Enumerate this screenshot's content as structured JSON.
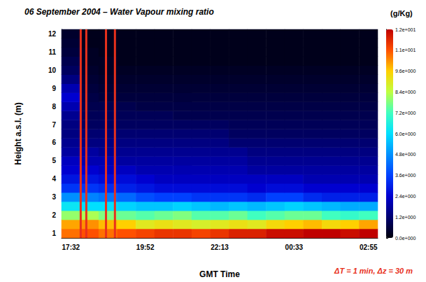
{
  "chart_data": {
    "type": "heatmap",
    "title": "06 September 2004 – Water Vapour mixing ratio",
    "x_label": "GMT Time",
    "y_label": "Height a.s.l. (m)",
    "categories": [
      "17:32",
      null,
      null,
      null,
      "19:52",
      null,
      null,
      null,
      "22:13",
      null,
      null,
      null,
      "00:33",
      null,
      null,
      null,
      "02:55"
    ],
    "y_categories": [
      "1",
      null,
      "2",
      null,
      "3",
      null,
      "4",
      null,
      "5",
      null,
      "6",
      null,
      "7",
      null,
      "8",
      null,
      "9",
      null,
      "10",
      null,
      "11",
      null,
      "12"
    ],
    "values": [
      [
        10.5,
        10.8,
        10.5,
        10.8,
        11.0,
        11.2,
        11.2,
        11.0,
        11.2,
        11.5,
        11.5,
        11.8,
        11.8,
        12.0,
        12.0,
        11.8,
        12.0
      ],
      [
        10.0,
        10.2,
        9.8,
        9.6,
        9.0,
        9.2,
        9.0,
        8.8,
        9.0,
        9.2,
        9.0,
        9.4,
        9.6,
        9.8,
        9.4,
        9.6,
        10.0
      ],
      [
        8.0,
        8.2,
        7.8,
        7.6,
        7.4,
        7.6,
        7.8,
        7.4,
        7.4,
        7.6,
        7.2,
        7.4,
        7.6,
        7.6,
        7.2,
        7.0,
        7.2
      ],
      [
        6.2,
        6.0,
        6.0,
        5.8,
        5.6,
        5.6,
        5.8,
        5.6,
        5.4,
        5.6,
        5.4,
        5.6,
        5.8,
        5.6,
        5.4,
        5.2,
        5.2
      ],
      [
        4.8,
        4.6,
        4.4,
        4.2,
        3.8,
        3.6,
        3.6,
        3.4,
        3.4,
        3.4,
        3.2,
        3.6,
        3.6,
        3.2,
        3.0,
        3.0,
        3.0
      ],
      [
        3.4,
        3.4,
        3.2,
        3.0,
        2.8,
        2.6,
        2.6,
        2.6,
        2.6,
        2.6,
        2.4,
        2.6,
        2.6,
        2.4,
        2.4,
        2.4,
        2.4
      ],
      [
        2.8,
        2.8,
        2.6,
        2.6,
        2.4,
        2.2,
        2.2,
        2.2,
        2.2,
        2.2,
        2.2,
        2.2,
        2.2,
        2.0,
        2.0,
        2.0,
        2.0
      ],
      [
        2.4,
        2.4,
        2.2,
        2.2,
        2.0,
        2.0,
        2.0,
        2.0,
        2.0,
        2.0,
        1.8,
        1.8,
        1.8,
        1.8,
        1.8,
        1.8,
        1.8
      ],
      [
        2.2,
        2.0,
        2.0,
        1.8,
        1.8,
        1.8,
        1.8,
        1.8,
        1.8,
        1.8,
        1.6,
        1.6,
        1.6,
        1.6,
        1.6,
        1.6,
        1.6
      ],
      [
        1.8,
        1.8,
        1.6,
        1.6,
        1.6,
        1.6,
        1.6,
        1.6,
        1.6,
        1.6,
        1.4,
        1.4,
        1.4,
        1.4,
        1.4,
        1.4,
        1.4
      ],
      [
        1.6,
        1.4,
        1.4,
        1.4,
        1.4,
        1.4,
        1.4,
        1.4,
        1.4,
        1.2,
        1.2,
        1.2,
        1.2,
        1.2,
        1.2,
        1.2,
        1.2
      ],
      [
        1.4,
        1.2,
        1.2,
        1.2,
        1.2,
        1.2,
        1.2,
        1.2,
        1.2,
        1.0,
        1.0,
        1.0,
        1.0,
        1.0,
        1.0,
        1.0,
        1.0
      ],
      [
        1.4,
        1.0,
        1.0,
        1.0,
        1.0,
        1.0,
        1.0,
        1.0,
        1.0,
        0.9,
        0.9,
        0.9,
        0.9,
        0.9,
        0.9,
        0.9,
        0.9
      ],
      [
        1.6,
        0.9,
        0.9,
        0.9,
        0.9,
        0.9,
        0.8,
        0.8,
        0.8,
        0.8,
        0.8,
        0.8,
        0.8,
        0.8,
        0.8,
        0.8,
        0.8
      ],
      [
        2.0,
        0.8,
        0.8,
        0.8,
        0.7,
        0.7,
        0.7,
        0.7,
        0.7,
        0.7,
        0.7,
        0.7,
        0.7,
        0.7,
        0.7,
        0.7,
        0.7
      ],
      [
        2.4,
        0.7,
        0.6,
        0.6,
        0.6,
        0.6,
        0.6,
        0.6,
        0.6,
        0.6,
        0.6,
        0.6,
        0.6,
        0.6,
        0.6,
        0.6,
        0.6
      ],
      [
        2.0,
        0.6,
        0.5,
        0.5,
        0.5,
        0.5,
        0.5,
        0.5,
        0.5,
        0.5,
        0.5,
        0.5,
        0.5,
        0.5,
        0.5,
        0.5,
        0.5
      ],
      [
        1.4,
        0.5,
        0.4,
        0.4,
        0.4,
        0.4,
        0.4,
        0.4,
        0.4,
        0.4,
        0.4,
        0.4,
        0.4,
        0.4,
        0.4,
        0.4,
        0.4
      ],
      [
        1.0,
        0.4,
        0.3,
        0.3,
        0.3,
        0.3,
        0.3,
        0.3,
        0.3,
        0.3,
        0.3,
        0.3,
        0.3,
        0.3,
        0.3,
        0.3,
        0.3
      ],
      [
        0.8,
        0.3,
        0.3,
        0.2,
        0.2,
        0.2,
        0.2,
        0.2,
        0.2,
        0.2,
        0.2,
        0.2,
        0.2,
        0.2,
        0.2,
        0.2,
        0.2
      ],
      [
        0.6,
        0.3,
        0.2,
        0.2,
        0.2,
        0.2,
        0.2,
        0.2,
        0.2,
        0.2,
        0.2,
        0.2,
        0.2,
        0.2,
        0.2,
        0.2,
        0.2
      ],
      [
        0.5,
        0.2,
        0.2,
        0.2,
        0.2,
        0.2,
        0.2,
        0.2,
        0.2,
        0.2,
        0.2,
        0.2,
        0.2,
        0.2,
        0.2,
        0.2,
        0.2
      ],
      [
        0.4,
        0.2,
        0.2,
        0.2,
        0.2,
        0.2,
        0.2,
        0.2,
        0.2,
        0.2,
        0.2,
        0.2,
        0.2,
        0.2,
        0.2,
        0.2,
        0.2
      ]
    ],
    "colorbar_label": "(g/Kg)",
    "clim": [
      0,
      12
    ],
    "cticks": [
      {
        "value": 0,
        "label": "0.0e+000"
      },
      {
        "value": 1.2,
        "label": "1.2e+000"
      },
      {
        "value": 2.4,
        "label": "2.4e+000"
      },
      {
        "value": 3.6,
        "label": "3.6e+000"
      },
      {
        "value": 4.8,
        "label": "4.8e+000"
      },
      {
        "value": 6,
        "label": "6.0e+000"
      },
      {
        "value": 7.2,
        "label": "7.2e+000"
      },
      {
        "value": 8.4,
        "label": "8.4e+000"
      },
      {
        "value": 9.6,
        "label": "9.6e+000"
      },
      {
        "value": 10.8,
        "label": "1.1e+001"
      },
      {
        "value": 12,
        "label": "1.2e+001"
      }
    ],
    "colors": [
      "#00000a",
      "#000070",
      "#0000d0",
      "#0040ff",
      "#0090ff",
      "#00e0ff",
      "#40ffc0",
      "#c0ff40",
      "#ffd000",
      "#ff5000",
      "#c00000"
    ],
    "annotation": "ΔT = 1 min, Δz = 30 m",
    "vlines": [
      0.53,
      0.83,
      1.89,
      2.37
    ],
    "vline_color": "#e8301c"
  }
}
